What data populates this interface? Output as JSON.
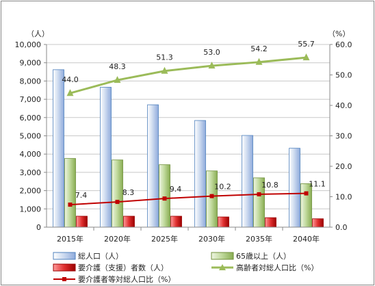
{
  "chart_data": {
    "type": "bar",
    "title": "",
    "categories": [
      "2015年",
      "2020年",
      "2025年",
      "2030年",
      "2035年",
      "2040年"
    ],
    "left_axis": {
      "unit_label": "（人）",
      "ylim": [
        0,
        10000
      ],
      "ticks": [
        "0",
        "1,000",
        "2,000",
        "3,000",
        "4,000",
        "5,000",
        "6,000",
        "7,000",
        "8,000",
        "9,000",
        "10,000"
      ]
    },
    "right_axis": {
      "unit_label": "（%）",
      "ylim": [
        0,
        60
      ],
      "ticks": [
        "0.0",
        "10.0",
        "20.0",
        "30.0",
        "40.0",
        "50.0",
        "60.0"
      ]
    },
    "grid": true,
    "legend_position": "bottom",
    "series": [
      {
        "name": "総人口（人）",
        "kind": "bar",
        "axis": "left",
        "color": "#4f81bd",
        "values": [
          8620,
          7660,
          6700,
          5840,
          5020,
          4320
        ]
      },
      {
        "name": "65歳以上（人）",
        "kind": "bar",
        "axis": "left",
        "color": "#9bbb59",
        "values": [
          3760,
          3680,
          3420,
          3080,
          2700,
          2380
        ]
      },
      {
        "name": "要介護（支援）者数（人）",
        "kind": "bar",
        "axis": "left",
        "color": "#c00000",
        "values": [
          600,
          600,
          600,
          560,
          520,
          460
        ]
      },
      {
        "name": "高齢者対総人口比（%）",
        "kind": "line",
        "axis": "right",
        "color": "#9bbb59",
        "values": [
          44.0,
          48.3,
          51.3,
          53.0,
          54.2,
          55.7
        ],
        "labels": [
          "44.0",
          "48.3",
          "51.3",
          "53.0",
          "54.2",
          "55.7"
        ]
      },
      {
        "name": "要介護者等対総人口比（%）",
        "kind": "line",
        "axis": "right",
        "color": "#c00000",
        "values": [
          7.4,
          8.3,
          9.4,
          10.2,
          10.8,
          11.1
        ],
        "labels": [
          "7.4",
          "8.3",
          "9.4",
          "10.2",
          "10.8",
          "11.1"
        ]
      }
    ]
  }
}
